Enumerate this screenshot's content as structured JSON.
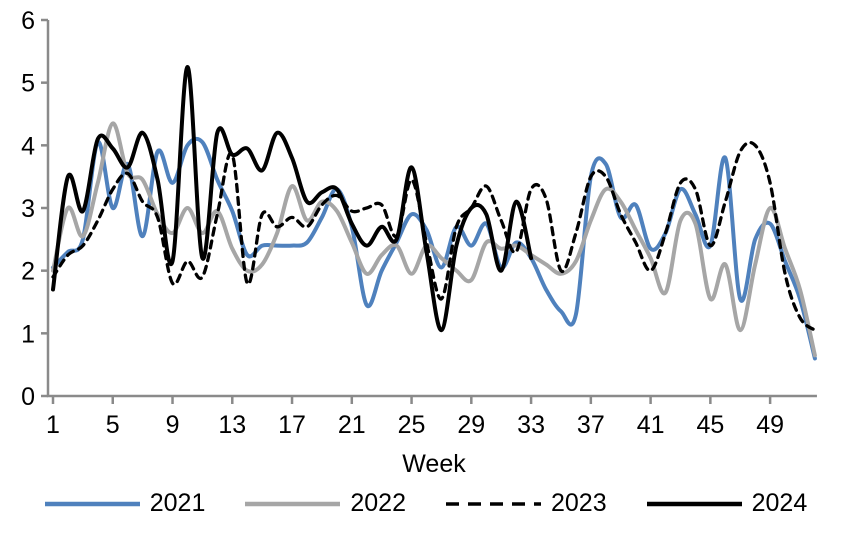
{
  "chart_data": {
    "type": "line",
    "title": "",
    "xlabel": "Week",
    "ylabel": "",
    "x_range": [
      1,
      52
    ],
    "x_tick_labels": [
      1,
      5,
      9,
      13,
      17,
      21,
      25,
      29,
      33,
      37,
      41,
      45,
      49
    ],
    "ylim": [
      0,
      6
    ],
    "y_tick_labels": [
      0,
      1,
      2,
      3,
      4,
      5,
      6
    ],
    "grid": false,
    "legend_position": "bottom",
    "axis_color": "#8A8A8A",
    "series": [
      {
        "name": "2021",
        "color": "#4F81BD",
        "style": "solid",
        "values": [
          2.05,
          2.3,
          2.5,
          4.05,
          3.0,
          3.7,
          2.55,
          3.9,
          3.4,
          4.0,
          4.05,
          3.45,
          2.95,
          2.25,
          2.4,
          2.4,
          2.4,
          2.45,
          2.85,
          3.3,
          2.7,
          1.45,
          2.0,
          2.45,
          2.9,
          2.65,
          2.05,
          2.7,
          2.4,
          2.75,
          2.05,
          2.45,
          2.2,
          1.7,
          1.35,
          1.3,
          3.5,
          3.7,
          2.85,
          3.05,
          2.35,
          2.6,
          3.3,
          2.9,
          2.4,
          3.8,
          1.55,
          2.5,
          2.75,
          2.15,
          1.55,
          0.6
        ]
      },
      {
        "name": "2022",
        "color": "#A6A6A6",
        "style": "solid",
        "values": [
          2.0,
          3.0,
          2.55,
          3.4,
          4.35,
          3.55,
          3.45,
          2.9,
          2.6,
          3.0,
          2.6,
          2.95,
          2.35,
          2.0,
          2.1,
          2.6,
          3.35,
          2.8,
          3.1,
          2.95,
          2.45,
          1.95,
          2.25,
          2.4,
          1.95,
          2.4,
          2.2,
          2.0,
          1.85,
          2.45,
          2.35,
          2.4,
          2.25,
          2.1,
          1.95,
          2.15,
          2.8,
          3.3,
          3.1,
          2.65,
          2.2,
          1.65,
          2.8,
          2.75,
          1.55,
          2.1,
          1.05,
          2.1,
          3.0,
          2.35,
          1.7,
          0.65
        ]
      },
      {
        "name": "2023",
        "color": "#000000",
        "style": "dashed",
        "values": [
          1.9,
          2.25,
          2.4,
          2.8,
          3.3,
          3.55,
          3.1,
          2.85,
          1.8,
          2.15,
          1.9,
          2.9,
          3.85,
          1.8,
          2.9,
          2.7,
          2.85,
          2.7,
          3.05,
          3.2,
          2.95,
          3.0,
          3.05,
          2.55,
          3.45,
          2.45,
          1.55,
          2.7,
          3.0,
          3.35,
          2.8,
          2.3,
          3.3,
          3.15,
          2.0,
          2.6,
          3.5,
          3.5,
          2.9,
          2.45,
          2.0,
          2.6,
          3.4,
          3.3,
          2.4,
          3.1,
          3.9,
          4.0,
          3.4,
          1.95,
          1.25,
          1.05
        ]
      },
      {
        "name": "2024",
        "color": "#000000",
        "style": "solid",
        "values": [
          1.7,
          3.5,
          2.95,
          4.1,
          3.95,
          3.65,
          4.2,
          3.45,
          2.15,
          5.25,
          2.2,
          4.2,
          3.85,
          3.95,
          3.6,
          4.2,
          3.8,
          3.1,
          3.25,
          3.3,
          2.75,
          2.4,
          2.7,
          2.5,
          3.65,
          2.3,
          1.05,
          2.4,
          3.0,
          2.9,
          2.0,
          3.1,
          2.2,
          null,
          null,
          null,
          null,
          null,
          null,
          null,
          null,
          null,
          null,
          null,
          null,
          null,
          null,
          null,
          null,
          null,
          null,
          null
        ]
      }
    ]
  }
}
